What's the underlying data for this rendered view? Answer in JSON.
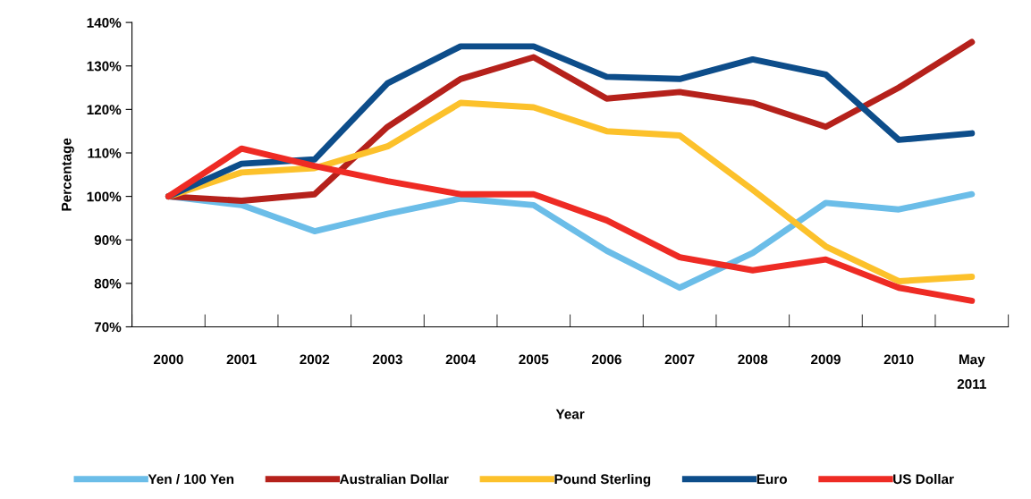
{
  "chart_data": {
    "type": "line",
    "xlabel": "Year",
    "ylabel": "Percentage",
    "categories": [
      "2000",
      "2001",
      "2002",
      "2003",
      "2004",
      "2005",
      "2006",
      "2007",
      "2008",
      "2009",
      "2010",
      "May\n2011"
    ],
    "series": [
      {
        "name": "Yen / 100 Yen",
        "color": "#6bbde8",
        "values": [
          100,
          98,
          92,
          96,
          99.5,
          98,
          87.5,
          79,
          87,
          98.5,
          97,
          100.5
        ]
      },
      {
        "name": "Australian Dollar",
        "color": "#b5211b",
        "values": [
          100,
          99,
          100.5,
          116,
          127,
          132,
          122.5,
          124,
          121.5,
          116,
          125,
          135.5
        ]
      },
      {
        "name": "Pound Sterling",
        "color": "#fcc12b",
        "values": [
          100,
          105.5,
          106.5,
          111.5,
          121.5,
          120.5,
          115,
          114,
          101.5,
          88.5,
          80.5,
          81.5
        ]
      },
      {
        "name": "Euro",
        "color": "#0d4d8a",
        "values": [
          100,
          107.5,
          108.5,
          126,
          134.5,
          134.5,
          127.5,
          127,
          131.5,
          128,
          113,
          114.5
        ]
      },
      {
        "name": "US Dollar",
        "color": "#ee2b24",
        "values": [
          100,
          111,
          107,
          103.5,
          100.5,
          100.5,
          94.5,
          86,
          83,
          85.5,
          79,
          76
        ]
      }
    ],
    "ylim": [
      70,
      140
    ],
    "yticks": [
      {
        "value": 70,
        "label": "70%"
      },
      {
        "value": 80,
        "label": "80%"
      },
      {
        "value": 90,
        "label": "90%"
      },
      {
        "value": 100,
        "label": "100%"
      },
      {
        "value": 110,
        "label": "110%"
      },
      {
        "value": 120,
        "label": "120%"
      },
      {
        "value": 130,
        "label": "130%"
      },
      {
        "value": 140,
        "label": "140%"
      }
    ],
    "grid": false,
    "legend": "bottom",
    "marker": "none",
    "line_style": "solid"
  }
}
